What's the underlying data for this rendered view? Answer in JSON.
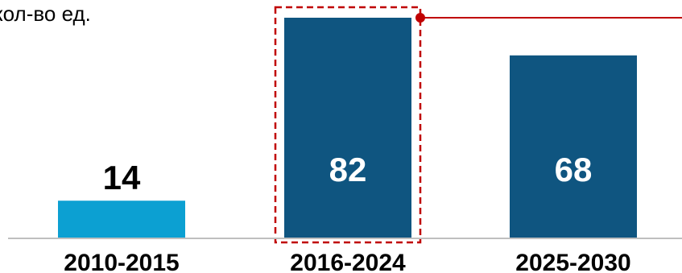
{
  "chart_data": {
    "type": "bar",
    "unit_label": "кол-во ед.",
    "categories": [
      "2010-2015",
      "2016-2024",
      "2025-2030"
    ],
    "values": [
      14,
      82,
      68
    ],
    "value_labels": [
      "14",
      "82",
      "68"
    ],
    "ylim": [
      0,
      85
    ],
    "grid": false,
    "legend": "none",
    "highlighted_category": "2016-2024",
    "colors": {
      "bar_light": "#0ca0d2",
      "bar_dark": "#0f5580",
      "highlight": "#c00000",
      "baseline": "#bfbfbf",
      "value_on_dark": "#ffffff",
      "value_on_light": "#000000"
    }
  }
}
